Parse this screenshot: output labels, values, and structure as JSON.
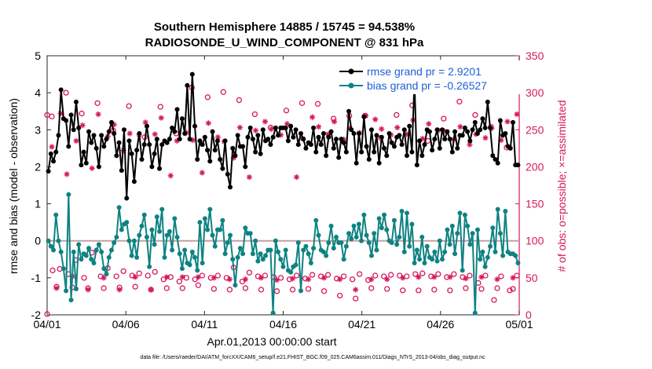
{
  "chart_data": {
    "type": "line",
    "title": "Southern Hemisphere 14885 / 15745 = 94.538%",
    "subtitle": "RADIOSONDE_U_WIND_COMPONENT @ 831 hPa",
    "xlabel": "Apr.01,2013 00:00:00 start",
    "ylabel_left": "rmse and bias (model - observation)",
    "ylabel_right": "# of obs: o=possible; ×=assimilated",
    "xlim": [
      0,
      30
    ],
    "ylim_left": [
      -2,
      5
    ],
    "ylim_right": [
      0,
      350
    ],
    "x_ticks": [
      0,
      5,
      10,
      15,
      20,
      25,
      30
    ],
    "x_tick_labels": [
      "04/01",
      "04/06",
      "04/11",
      "04/16",
      "04/21",
      "04/26",
      "05/01"
    ],
    "y_left_ticks": [
      -2,
      -1,
      0,
      1,
      2,
      3,
      4,
      5
    ],
    "y_right_ticks": [
      0,
      50,
      100,
      150,
      200,
      250,
      300,
      350
    ],
    "zero_line": 0,
    "footnote": "data file: /Users/raeder/DAI/ATM_forcXX/CAM6_setup/f.e21.FHIST_BGC.f09_025.CAM6assim.011/Diags_NTrS_2013-04/obs_diag_output.nc",
    "colors": {
      "rmse": "#000000",
      "bias": "#0f8282",
      "obs": "#d6185f",
      "zero_line": "#c8a0a0",
      "legend_text": "#1f5fd6",
      "right_axis": "#d6185f"
    },
    "series": [
      {
        "name": "rmse",
        "legend": "rmse grand pr = 2.9201",
        "axis": "left",
        "values": [
          1.88,
          2.35,
          2.15,
          2.4,
          2.85,
          4.08,
          3.3,
          3.25,
          2.55,
          3.4,
          3.0,
          3.75,
          3.05,
          2.05,
          2.4,
          2.1,
          2.95,
          2.65,
          2.85,
          2.5,
          2.0,
          2.85,
          2.55,
          2.75,
          2.95,
          3.2,
          2.9,
          2.3,
          2.65,
          1.9,
          3.0,
          1.15,
          2.7,
          2.35,
          1.6,
          2.45,
          2.9,
          2.2,
          2.6,
          3.1,
          2.6,
          2.0,
          2.35,
          2.75,
          1.95,
          2.6,
          2.7,
          2.65,
          2.75,
          3.05,
          2.95,
          3.55,
          2.75,
          3.3,
          2.9,
          4.2,
          2.75,
          4.5,
          3.1,
          2.2,
          2.7,
          2.6,
          2.8,
          2.45,
          2.15,
          2.95,
          2.45,
          2.7,
          2.2,
          1.95,
          2.7,
          1.8,
          1.45,
          2.5,
          2.3,
          2.85,
          2.55,
          2.55,
          2.0,
          2.8,
          3.05,
          2.75,
          2.4,
          2.85,
          2.35,
          3.0,
          2.7,
          2.75,
          2.6,
          2.8,
          3.05,
          2.85,
          3.05,
          3.05,
          3.05,
          2.7,
          3.1,
          2.8,
          3.0,
          2.6,
          2.9,
          2.75,
          2.5,
          2.65,
          2.6,
          3.05,
          2.4,
          2.8,
          2.6,
          2.9,
          2.3,
          2.8,
          2.95,
          2.5,
          2.75,
          2.25,
          2.75,
          2.65,
          2.4,
          3.5,
          3.0,
          2.9,
          2.1,
          2.9,
          2.4,
          3.35,
          2.55,
          2.2,
          3.0,
          2.4,
          2.85,
          2.1,
          2.8,
          2.5,
          2.3,
          2.9,
          2.65,
          2.55,
          2.8,
          2.85,
          2.6,
          3.0,
          2.3,
          3.1,
          2.4,
          4.32,
          2.05,
          2.7,
          2.3,
          2.6,
          3.0,
          2.95,
          2.45,
          2.75,
          3.0,
          2.5,
          3.0,
          2.75,
          2.95,
          2.75,
          2.4,
          2.95,
          2.5,
          2.85,
          2.85,
          3.05,
          2.95,
          2.7,
          3.0,
          3.2,
          2.9,
          3.0,
          3.3,
          3.05,
          3.75,
          3.05,
          2.3,
          2.2,
          2.1,
          3.25,
          2.85,
          2.9,
          2.55,
          2.5,
          3.2,
          2.05,
          2.05
        ]
      },
      {
        "name": "bias",
        "legend": "bias grand pr = -0.26527",
        "axis": "left",
        "values": [
          0.0,
          -0.15,
          -0.25,
          0.7,
          0.0,
          -0.3,
          -0.75,
          -1.35,
          1.25,
          -1.6,
          -0.3,
          -1.3,
          -0.1,
          -0.5,
          -0.35,
          -0.4,
          -0.2,
          -0.5,
          -0.6,
          -0.25,
          -0.1,
          -0.3,
          -0.75,
          -0.9,
          -0.45,
          -0.25,
          -0.05,
          0.1,
          0.9,
          0.3,
          0.45,
          0.5,
          0.0,
          -0.4,
          0.0,
          -0.45,
          0.15,
          0.4,
          0.7,
          0.1,
          -0.7,
          0.3,
          -0.1,
          0.65,
          0.25,
          0.85,
          -0.45,
          0.15,
          0.25,
          -0.25,
          0.6,
          0.1,
          -0.35,
          -0.75,
          -0.25,
          -0.6,
          -0.65,
          -0.3,
          -0.45,
          -0.8,
          0.5,
          -0.6,
          0.6,
          0.3,
          0.85,
          0.15,
          -0.15,
          0.3,
          0.3,
          0.55,
          -0.35,
          -0.05,
          0.15,
          -0.5,
          -1.2,
          -0.45,
          -0.2,
          -0.35,
          0.35,
          0.2,
          0.2,
          -0.35,
          0.0,
          -0.55,
          -0.35,
          -0.5,
          -0.4,
          -0.25,
          -0.25,
          -1.95,
          0.0,
          -0.3,
          -0.5,
          -0.7,
          -0.25,
          -0.8,
          -0.85,
          -0.7,
          -0.65,
          -0.05,
          -1.35,
          -0.25,
          -0.15,
          -0.35,
          -0.6,
          -0.2,
          0.55,
          0.15,
          -0.25,
          -0.3,
          -0.4,
          -0.05,
          0.4,
          -0.2,
          0.1,
          -0.05,
          -0.05,
          -0.5,
          -0.15,
          0.2,
          0.05,
          0.4,
          0.1,
          0.45,
          0.0,
          0.7,
          0.15,
          -0.05,
          -0.4,
          0.2,
          -0.25,
          0.6,
          0.35,
          0.7,
          0.3,
          0.0,
          -0.05,
          0.55,
          -0.1,
          0.1,
          0.8,
          -0.3,
          0.75,
          -0.15,
          0.45,
          -0.6,
          -0.25,
          -0.5,
          0.1,
          -0.6,
          -0.15,
          -0.45,
          -0.5,
          -0.3,
          -0.55,
          0.0,
          -0.5,
          -0.3,
          0.3,
          -0.1,
          0.4,
          -0.35,
          0.2,
          0.75,
          -0.8,
          0.7,
          0.4,
          -0.1,
          0.2,
          -1.95,
          0.3,
          -0.5,
          -0.3,
          -0.7,
          -0.45,
          -0.15,
          0.35,
          -0.3,
          0.85,
          0.2,
          -0.4,
          0.8,
          -0.3,
          -0.35,
          -0.35,
          -0.4,
          -0.6
        ]
      }
    ],
    "obs_possible": {
      "axis": "right",
      "times": [
        0.0,
        0.0,
        0.3,
        0.35,
        0.6,
        0.8,
        1.2,
        1.35,
        1.6,
        1.8,
        2.2,
        2.35,
        2.6,
        2.85,
        3.2,
        3.4,
        3.6,
        3.85,
        4.2,
        4.4,
        4.6,
        4.85,
        5.2,
        5.4,
        5.6,
        5.85,
        6.2,
        6.4,
        6.6,
        6.85,
        7.2,
        7.4,
        7.6,
        7.85,
        8.2,
        8.4,
        8.6,
        8.85,
        9.2,
        9.4,
        9.6,
        9.85,
        10.2,
        10.4,
        10.6,
        10.85,
        11.2,
        11.4,
        11.6,
        11.85,
        12.2,
        12.4,
        12.6,
        12.85,
        13.2,
        13.4,
        13.6,
        13.85,
        14.2,
        14.4,
        14.6,
        14.85,
        15.2,
        15.4,
        15.6,
        15.85,
        16.2,
        16.4,
        16.6,
        16.85,
        17.2,
        17.4,
        17.6,
        17.85,
        18.2,
        18.4,
        18.6,
        18.85,
        19.2,
        19.4,
        19.6,
        19.85,
        20.2,
        20.4,
        20.6,
        20.85,
        21.2,
        21.4,
        21.6,
        21.85,
        22.2,
        22.4,
        22.6,
        22.85,
        23.2,
        23.4,
        23.6,
        23.85,
        24.2,
        24.4,
        24.6,
        24.85,
        25.2,
        25.4,
        25.6,
        25.85,
        26.2,
        26.4,
        26.6,
        26.85,
        27.2,
        27.4,
        27.6,
        27.85,
        28.2,
        28.4,
        28.6,
        28.85,
        29.2,
        29.4,
        29.6,
        29.85
      ],
      "values": [
        1,
        270,
        268,
        60,
        38,
        62,
        300,
        55,
        37,
        74,
        272,
        50,
        36,
        84,
        286,
        52,
        36,
        63,
        249,
        52,
        37,
        59,
        282,
        53,
        38,
        56,
        240,
        53,
        34,
        58,
        281,
        48,
        36,
        51,
        245,
        45,
        36,
        50,
        307,
        48,
        40,
        53,
        294,
        50,
        35,
        53,
        301,
        50,
        34,
        64,
        290,
        45,
        36,
        57,
        271,
        52,
        34,
        53,
        253,
        51,
        32,
        50,
        276,
        48,
        34,
        53,
        286,
        49,
        35,
        54,
        285,
        52,
        32,
        54,
        265,
        49,
        26,
        52,
        269,
        48,
        22,
        55,
        269,
        47,
        36,
        53,
        239,
        52,
        35,
        54,
        270,
        53,
        33,
        52,
        283,
        55,
        33,
        56,
        235,
        52,
        34,
        55,
        265,
        51,
        33,
        55,
        288,
        51,
        36,
        53,
        270,
        43,
        35,
        53,
        254,
        20,
        36,
        52,
        226,
        33,
        35,
        53
      ]
    },
    "obs_assimilated": {
      "axis": "right",
      "times": [
        0.3,
        0.6,
        0.85,
        1.25,
        1.6,
        1.85,
        2.25,
        2.6,
        2.85,
        3.25,
        3.6,
        3.85,
        4.25,
        4.6,
        4.85,
        5.25,
        5.6,
        5.85,
        6.25,
        6.6,
        6.85,
        7.25,
        7.6,
        7.85,
        8.25,
        8.6,
        8.85,
        9.25,
        9.6,
        9.85,
        10.25,
        10.6,
        10.85,
        11.25,
        11.6,
        11.85,
        12.25,
        12.6,
        12.85,
        13.25,
        13.6,
        13.85,
        14.25,
        14.6,
        14.85,
        15.25,
        15.6,
        15.85,
        16.25,
        16.6,
        16.85,
        17.25,
        17.6,
        17.85,
        18.25,
        18.6,
        18.85,
        19.25,
        19.6,
        19.85,
        20.25,
        20.6,
        20.85,
        21.25,
        21.6,
        21.85,
        22.25,
        22.6,
        22.85,
        23.25,
        23.6,
        23.85,
        24.25,
        24.6,
        24.85,
        25.25,
        25.6,
        25.85,
        26.25,
        26.6,
        26.85,
        27.25,
        27.6,
        27.85,
        28.25,
        28.6,
        28.85,
        29.25,
        29.6,
        29.85
      ],
      "values": [
        227,
        36,
        272,
        190,
        52,
        235,
        256,
        34,
        198,
        271,
        50,
        241,
        257,
        34,
        222,
        245,
        51,
        243,
        260,
        34,
        244,
        266,
        51,
        188,
        235,
        51,
        246,
        236,
        51,
        192,
        259,
        50,
        240,
        234,
        48,
        212,
        253,
        48,
        186,
        249,
        50,
        261,
        251,
        47,
        243,
        258,
        49,
        186,
        238,
        48,
        267,
        254,
        50,
        244,
        261,
        48,
        237,
        252,
        34,
        246,
        269,
        48,
        264,
        251,
        48,
        243,
        253,
        50,
        244,
        263,
        51,
        238,
        258,
        51,
        249,
        248,
        51,
        237,
        254,
        49,
        230,
        244,
        51,
        239,
        252,
        48,
        236,
        261,
        50,
        271
      ]
    }
  }
}
